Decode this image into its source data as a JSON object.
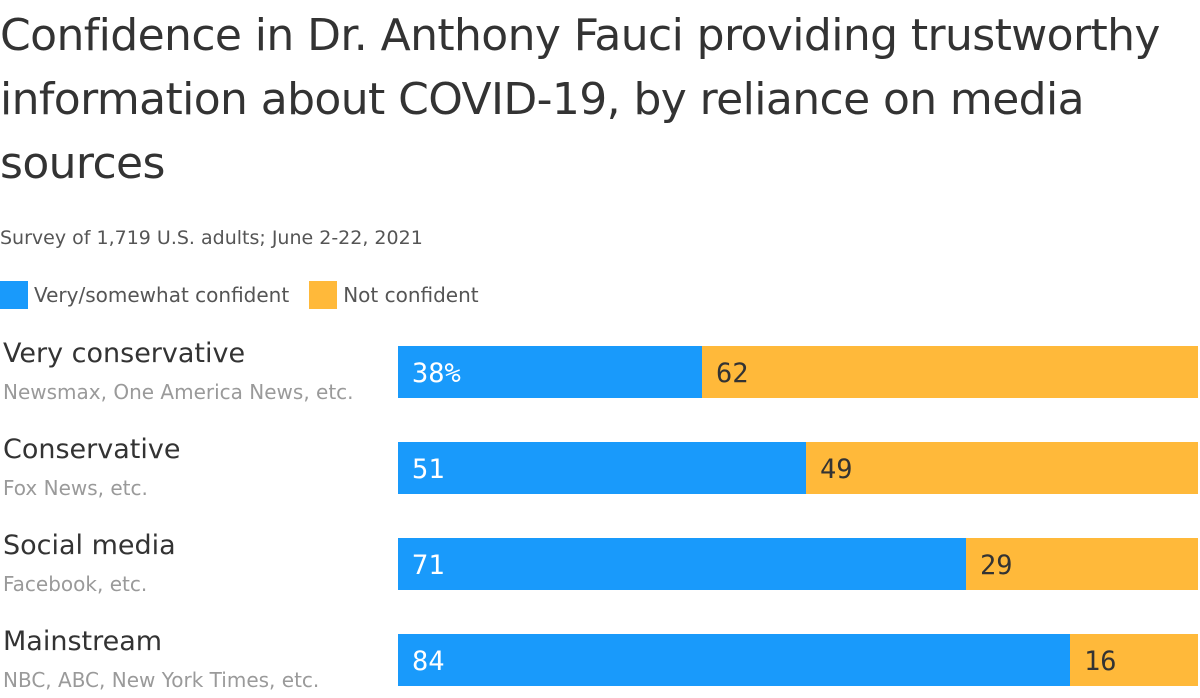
{
  "chart_data": {
    "type": "bar",
    "orientation": "horizontal",
    "stacked": true,
    "title": "Confidence in Dr. Anthony Fauci providing trustworthy information about COVID-19, by reliance on media sources",
    "subtitle": "Survey of 1,719 U.S. adults; June 2-22, 2021",
    "categories": [
      "Very conservative",
      "Conservative",
      "Social media",
      "Mainstream"
    ],
    "category_notes": [
      "Newsmax, One America News, etc.",
      "Fox News, etc.",
      "Facebook, etc.",
      "NBC, ABC, New York Times, etc."
    ],
    "series": [
      {
        "name": "Very/somewhat confident",
        "values": [
          38,
          51,
          71,
          84
        ],
        "color": "#199afb",
        "label_color": "#ffffff"
      },
      {
        "name": "Not confident",
        "values": [
          62,
          49,
          29,
          16
        ],
        "color": "#ffb93a",
        "label_color": "#333333"
      }
    ],
    "value_labels": [
      [
        "38%",
        "51",
        "71",
        "84"
      ],
      [
        "62",
        "49",
        "29",
        "16"
      ]
    ],
    "xlim": [
      0,
      100
    ],
    "grid": false,
    "legend_position": "top-left"
  }
}
